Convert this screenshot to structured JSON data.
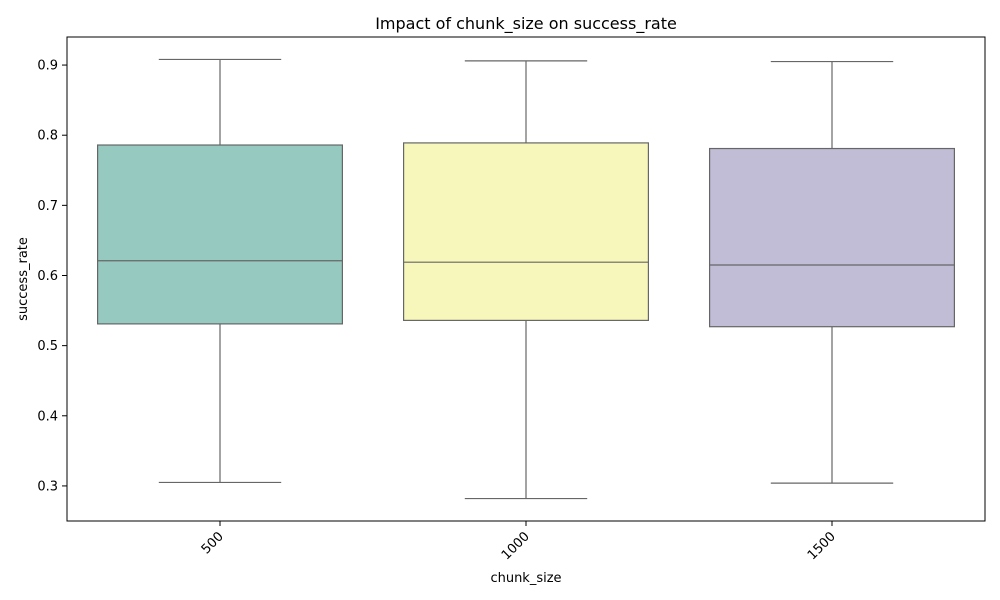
{
  "chart_data": {
    "type": "box",
    "title": "Impact of chunk_size on success_rate",
    "xlabel": "chunk_size",
    "ylabel": "success_rate",
    "ylim": [
      0.25,
      0.94
    ],
    "yticks": [
      0.3,
      0.4,
      0.5,
      0.6,
      0.7,
      0.8,
      0.9
    ],
    "yticks_text": [
      "0.3",
      "0.4",
      "0.5",
      "0.6",
      "0.7",
      "0.8",
      "0.9"
    ],
    "categories": [
      "500",
      "1000",
      "1500"
    ],
    "x_tick_rotation_deg": 45,
    "grid": false,
    "legend": "none",
    "boxes": [
      {
        "category": "500",
        "whisker_low": 0.305,
        "q1": 0.531,
        "median": 0.621,
        "q3": 0.786,
        "whisker_high": 0.908,
        "color": "#96c9c0"
      },
      {
        "category": "1000",
        "whisker_low": 0.282,
        "q1": 0.536,
        "median": 0.619,
        "q3": 0.789,
        "whisker_high": 0.906,
        "color": "#f7f7bc"
      },
      {
        "category": "1500",
        "whisker_low": 0.304,
        "q1": 0.527,
        "median": 0.615,
        "q3": 0.781,
        "whisker_high": 0.905,
        "color": "#c1bdd7"
      }
    ],
    "line_color": "#666666"
  }
}
